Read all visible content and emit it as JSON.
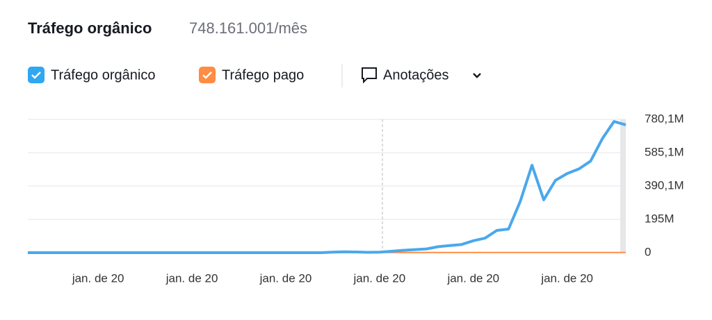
{
  "chart_data": {
    "type": "line",
    "title": "Tráfego orgânico",
    "subtitle": "748.161.001/mês",
    "annotations_button": "Anotações",
    "categories": [
      null,
      null,
      null,
      null,
      null,
      null,
      "jan. de 20",
      null,
      null,
      null,
      null,
      null,
      null,
      null,
      "jan. de 20",
      null,
      null,
      null,
      null,
      null,
      null,
      null,
      "jan. de 20",
      null,
      null,
      null,
      null,
      null,
      null,
      null,
      "jan. de 20",
      null,
      null,
      null,
      null,
      null,
      null,
      null,
      "jan. de 20",
      null,
      null,
      null,
      null,
      null,
      null,
      null,
      "jan. de 20",
      null,
      null,
      null,
      null,
      null
    ],
    "series": [
      {
        "name": "Tráfego orgânico",
        "color": "#4aa8ec",
        "values": [
          0,
          0,
          0,
          0,
          0,
          0,
          0,
          0,
          0,
          0,
          0,
          0,
          0,
          0,
          0,
          0,
          0,
          0,
          0,
          0,
          0,
          0,
          0,
          0,
          0,
          0,
          3,
          5,
          4,
          2,
          3,
          8,
          14,
          18,
          22,
          35,
          42,
          48,
          70,
          85,
          130,
          138,
          300,
          512,
          309,
          423,
          463,
          490,
          536,
          667,
          768,
          748
        ]
      },
      {
        "name": "Tráfego pago",
        "color": "#ff8c42",
        "values": [
          1,
          1,
          1,
          1,
          1,
          1,
          1,
          1,
          1,
          1,
          1,
          1,
          1,
          1,
          1,
          1,
          1,
          1,
          1,
          1,
          1,
          1,
          1,
          1,
          1,
          1,
          1,
          1,
          1,
          1,
          1,
          1,
          1,
          1,
          1,
          1,
          1,
          1,
          1,
          1,
          1,
          1,
          1,
          1,
          1,
          1,
          1,
          1,
          1,
          1,
          1,
          1
        ]
      }
    ],
    "ylim": [
      0,
      780.1
    ],
    "yticks": [
      0,
      {
        "value": 195,
        "label": "195M"
      },
      {
        "value": 390.1,
        "label": "390,1M"
      },
      {
        "value": 585.1,
        "label": "585,1M"
      },
      {
        "value": 780.1,
        "label": "780,1M"
      }
    ],
    "grid": true
  }
}
